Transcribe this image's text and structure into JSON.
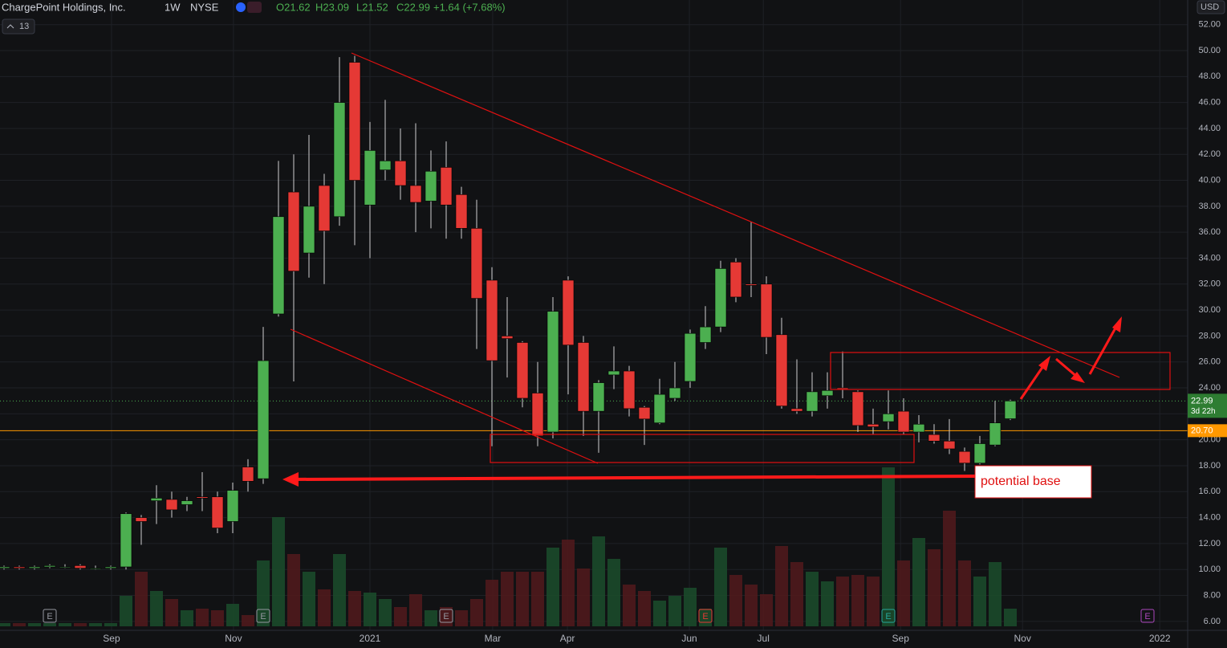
{
  "header": {
    "symbol": "ChargePoint Holdings, Inc.",
    "interval": "1W",
    "exchange": "NYSE",
    "ohlc": [
      "O21.62",
      "H23.09",
      "L21.52",
      "C22.99"
    ],
    "change": "+1.64 (+7.68%)",
    "indicator_count": 13,
    "currency": "USD"
  },
  "chart_data": {
    "type": "candlestick",
    "open": [
      10.1,
      10.2,
      10.1,
      10.2,
      10.2,
      10.3,
      10.1,
      10.1,
      10.2,
      14.0,
      15.3,
      15.4,
      15.0,
      15.6,
      15.6,
      13.7,
      17.9,
      17.0,
      29.7,
      39.1,
      34.4,
      39.6,
      37.2,
      49.1,
      38.1,
      40.8,
      41.5,
      39.6,
      38.4,
      41.0,
      38.9,
      36.3,
      32.3,
      28.0,
      27.5,
      23.6,
      20.6,
      32.3,
      27.5,
      22.2,
      25.0,
      25.3,
      22.5,
      21.3,
      23.2,
      24.5,
      27.5,
      28.7,
      33.7,
      32.0,
      32.0,
      28.1,
      22.4,
      22.2,
      23.4,
      24.0,
      23.7,
      21.2,
      21.4,
      22.2,
      20.6,
      20.4,
      19.9,
      19.1,
      18.2,
      19.6,
      21.62
    ],
    "high": [
      10.3,
      10.3,
      10.3,
      10.4,
      10.4,
      10.4,
      10.3,
      10.3,
      14.4,
      14.2,
      16.5,
      16.0,
      15.6,
      17.5,
      16.0,
      16.7,
      18.5,
      28.7,
      41.5,
      42.0,
      43.5,
      40.5,
      49.5,
      49.6,
      44.5,
      46.2,
      44.0,
      44.4,
      42.3,
      43.0,
      39.5,
      38.5,
      33.3,
      31.0,
      27.6,
      26.0,
      31.0,
      32.6,
      28.0,
      24.6,
      27.2,
      25.7,
      22.6,
      24.7,
      26.0,
      28.5,
      30.3,
      33.8,
      34.0,
      36.8,
      32.6,
      29.4,
      26.2,
      25.2,
      25.2,
      26.8,
      23.8,
      22.4,
      23.8,
      23.2,
      21.9,
      21.2,
      21.6,
      19.4,
      20.3,
      23.0,
      23.09
    ],
    "low": [
      10.0,
      10.0,
      10.0,
      10.1,
      10.1,
      10.0,
      10.0,
      10.0,
      10.0,
      11.9,
      13.5,
      14.0,
      14.5,
      14.5,
      12.8,
      12.8,
      16.0,
      16.6,
      29.5,
      24.5,
      32.5,
      32.0,
      36.5,
      35.0,
      34.0,
      40.0,
      38.5,
      36.0,
      36.3,
      35.5,
      35.5,
      27.0,
      19.5,
      24.8,
      22.5,
      19.5,
      20.1,
      23.5,
      20.3,
      19.0,
      23.9,
      21.8,
      19.6,
      21.2,
      23.0,
      24.0,
      27.0,
      28.3,
      30.6,
      31.0,
      26.6,
      22.4,
      22.0,
      21.8,
      22.4,
      23.2,
      20.6,
      20.4,
      20.8,
      20.4,
      19.8,
      19.7,
      18.9,
      17.6,
      18.1,
      19.5,
      21.52
    ],
    "close": [
      10.2,
      10.1,
      10.2,
      10.3,
      10.2,
      10.1,
      10.1,
      10.2,
      14.3,
      13.7,
      15.5,
      14.6,
      15.3,
      15.5,
      13.2,
      16.1,
      16.8,
      26.1,
      37.2,
      33.0,
      38.0,
      36.1,
      46.0,
      40.0,
      42.3,
      41.5,
      39.6,
      38.3,
      40.7,
      38.1,
      36.3,
      30.9,
      26.1,
      27.8,
      23.2,
      20.3,
      29.9,
      27.3,
      22.2,
      24.4,
      25.3,
      22.4,
      21.6,
      23.5,
      24.0,
      28.2,
      28.7,
      33.2,
      31.0,
      31.9,
      27.9,
      22.6,
      22.2,
      23.7,
      23.8,
      23.9,
      21.1,
      21.0,
      22.0,
      20.6,
      21.2,
      19.9,
      19.3,
      18.2,
      19.7,
      21.3,
      22.99
    ],
    "volume": [
      2,
      2,
      2,
      2,
      2,
      2,
      2,
      2,
      19,
      34,
      22,
      17,
      10,
      11,
      10,
      14,
      7,
      41,
      68,
      45,
      34,
      23,
      45,
      22,
      21,
      17,
      12,
      20,
      10,
      12,
      10,
      17,
      29,
      34,
      34,
      34,
      49,
      54,
      36,
      56,
      42,
      26,
      22,
      16,
      19,
      24,
      11,
      49,
      32,
      26,
      20,
      50,
      40,
      34,
      28,
      31,
      32,
      31,
      99,
      41,
      55,
      48,
      72,
      41,
      31,
      40,
      11
    ],
    "up_color": "#4caf50",
    "down_color": "#e53935",
    "ylim": [
      5.0,
      53.9
    ],
    "yticks": [
      {
        "value": 6,
        "label": "6.00"
      },
      {
        "value": 8,
        "label": "8.00"
      },
      {
        "value": 10,
        "label": "10.00"
      },
      {
        "value": 12,
        "label": "12.00"
      },
      {
        "value": 14,
        "label": "14.00"
      },
      {
        "value": 16,
        "label": "16.00"
      },
      {
        "value": 18,
        "label": "18.00"
      },
      {
        "value": 20,
        "label": "20.00"
      },
      {
        "value": 22,
        "label": "22.00"
      },
      {
        "value": 24,
        "label": "24.00"
      },
      {
        "value": 26,
        "label": "26.00"
      },
      {
        "value": 28,
        "label": "28.00"
      },
      {
        "value": 30,
        "label": "30.00"
      },
      {
        "value": 32,
        "label": "32.00"
      },
      {
        "value": 34,
        "label": "34.00"
      },
      {
        "value": 36,
        "label": "36.00"
      },
      {
        "value": 38,
        "label": "38.00"
      },
      {
        "value": 40,
        "label": "40.00"
      },
      {
        "value": 42,
        "label": "42.00"
      },
      {
        "value": 44,
        "label": "44.00"
      },
      {
        "value": 46,
        "label": "46.00"
      },
      {
        "value": 48,
        "label": "48.00"
      },
      {
        "value": 50,
        "label": "50.00"
      },
      {
        "value": 52,
        "label": "52.00"
      }
    ],
    "xticks": [
      {
        "value": 7.05,
        "label": "Sep"
      },
      {
        "value": 15.05,
        "label": "Nov"
      },
      {
        "value": 24,
        "label": "2021"
      },
      {
        "value": 32.05,
        "label": "Mar"
      },
      {
        "value": 36.95,
        "label": "Apr"
      },
      {
        "value": 44.95,
        "label": "Jun"
      },
      {
        "value": 49.8,
        "label": "Jul"
      },
      {
        "value": 58.8,
        "label": "Sep"
      },
      {
        "value": 66.8,
        "label": "Nov"
      },
      {
        "value": 75.8,
        "label": "2022"
      }
    ],
    "grid": true,
    "last_price": 22.99,
    "countdown": "3d 22h",
    "price_line": {
      "value": 20.7,
      "label": "20.70"
    },
    "events": [
      {
        "index": 3,
        "label": "E",
        "color": "#9598a1"
      },
      {
        "index": 17,
        "label": "E",
        "color": "#9598a1"
      },
      {
        "index": 29,
        "label": "E",
        "color": "#9598a1"
      },
      {
        "index": 46,
        "label": "E",
        "color": "#e53935"
      },
      {
        "index": 58,
        "label": "E",
        "color": "#26a69a"
      },
      {
        "index": 75,
        "label": "E",
        "color": "#ab47bc"
      }
    ],
    "annotation": "potential base"
  }
}
